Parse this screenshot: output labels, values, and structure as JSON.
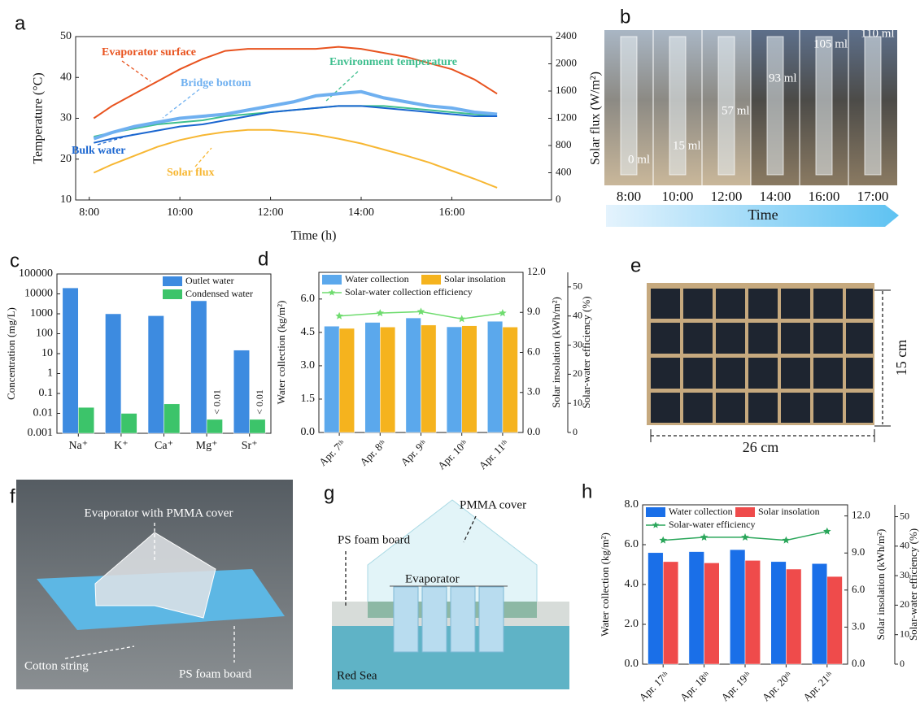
{
  "chart_data": [
    {
      "panel": "a",
      "type": "line",
      "xlabel": "Time (h)",
      "ylabel": "Temperature (°C)",
      "y2label": "Solar flux (W/m²)",
      "x": [
        8.1,
        8.5,
        9,
        9.5,
        10,
        10.5,
        11,
        11.5,
        12,
        12.5,
        13,
        13.5,
        14,
        14.5,
        15,
        15.5,
        16,
        16.5,
        17
      ],
      "xlim": [
        7.7,
        18.2
      ],
      "xticks": [
        {
          "value": 8,
          "label": "8:00"
        },
        {
          "value": 10,
          "label": "10:00"
        },
        {
          "value": 12,
          "label": "12:00"
        },
        {
          "value": 14,
          "label": "14:00"
        },
        {
          "value": 16,
          "label": "16:00"
        }
      ],
      "ylim": [
        10,
        50
      ],
      "yticks": [
        10,
        20,
        30,
        40,
        50
      ],
      "y2lim": [
        0,
        2400
      ],
      "y2ticks": [
        0,
        400,
        800,
        1200,
        1600,
        2000,
        2400
      ],
      "series": [
        {
          "name": "Evaporator surface",
          "color": "#e8531f",
          "values": [
            30,
            33,
            36,
            39,
            42,
            44.5,
            46.5,
            47,
            47,
            47,
            47,
            47.5,
            47,
            46,
            45,
            43.5,
            42,
            39.5,
            36
          ]
        },
        {
          "name": "Environment temperature",
          "color": "#3fbf8f",
          "values": [
            25.5,
            26.5,
            27.5,
            28.5,
            29,
            29.5,
            30.5,
            31,
            31.5,
            32,
            32.5,
            33,
            33,
            33,
            32.5,
            32,
            31.5,
            31,
            30.5
          ]
        },
        {
          "name": "Bridge bottom",
          "color": "#6fb0f0",
          "values": [
            25,
            26.5,
            28,
            29,
            30,
            30.5,
            31,
            32,
            33,
            34,
            35.5,
            36,
            36.5,
            35,
            34,
            33,
            32.5,
            31.5,
            31
          ]
        },
        {
          "name": "Bulk water",
          "color": "#1a66d0",
          "values": [
            24,
            25,
            26,
            27,
            28,
            28.5,
            29.5,
            30.5,
            31.5,
            32,
            32.5,
            33,
            33,
            32.5,
            32,
            31.5,
            31,
            30.5,
            30.5
          ]
        },
        {
          "name": "Solar flux",
          "color": "#f7b733",
          "axis": "y2",
          "values": [
            400,
            520,
            650,
            780,
            880,
            950,
            1000,
            1030,
            1030,
            1000,
            960,
            900,
            830,
            740,
            650,
            550,
            430,
            310,
            180
          ]
        }
      ]
    },
    {
      "panel": "c",
      "type": "bar",
      "ylabel": "Concentration (mg/L)",
      "log": true,
      "categories": [
        "Na⁺",
        "K⁺",
        "Ca⁺",
        "Mg⁺",
        "Sr⁺"
      ],
      "ylim": [
        0.001,
        100000
      ],
      "yticks": [
        0.001,
        0.01,
        0.1,
        1,
        10,
        100,
        1000,
        10000,
        100000
      ],
      "legend": "upper right",
      "series": [
        {
          "name": "Outlet water",
          "color": "#3d8be0",
          "values": [
            20000,
            1000,
            800,
            4500,
            15
          ]
        },
        {
          "name": "Condensed water",
          "color": "#3cc46a",
          "values": [
            0.02,
            0.01,
            0.03,
            0.005,
            0.005
          ],
          "value_labels": [
            null,
            null,
            null,
            "< 0.01",
            "< 0.01"
          ]
        }
      ]
    },
    {
      "panel": "d",
      "type": "bar",
      "ylabel": "Water collection (kg/m²)",
      "y2label": "Solar insolation (kWh/m²)",
      "y3label": "Solar-water efficiency (%)",
      "categories": [
        "Apr. 7ᵗʰ",
        "Apr. 8ᵗʰ",
        "Apr. 9ᵗʰ",
        "Apr. 10ᵗʰ",
        "Apr. 11ᵗʰ"
      ],
      "ylim": [
        0,
        7.2
      ],
      "yticks": [
        {
          "value": 0,
          "label": "0.0"
        },
        1.5,
        {
          "value": 3,
          "label": "3.0"
        },
        4.5,
        {
          "value": 6,
          "label": "6.0"
        }
      ],
      "y2lim": [
        0,
        12
      ],
      "y2ticks": [
        {
          "value": 0,
          "label": "0.0"
        },
        {
          "value": 3,
          "label": "3.0"
        },
        {
          "value": 6,
          "label": "6.0"
        },
        {
          "value": 9,
          "label": "9.0"
        },
        {
          "value": 12,
          "label": "12.0"
        }
      ],
      "y3lim": [
        0,
        55
      ],
      "y3ticks": [
        0,
        10,
        20,
        30,
        40,
        50
      ],
      "legend": "upper left",
      "series": [
        {
          "name": "Water collection",
          "color": "#5ba8ec",
          "values": [
            4.78,
            4.95,
            5.15,
            4.75,
            5.0
          ]
        },
        {
          "name": "Solar insolation",
          "color": "#f5b31e",
          "axis": "y2",
          "values": [
            7.8,
            7.9,
            8.05,
            8.0,
            7.9
          ]
        },
        {
          "name": "Solar-water collection efficiency",
          "color": "#6fdc6f",
          "axis": "y3",
          "type": "line",
          "values": [
            40,
            41,
            41.5,
            39,
            41
          ]
        }
      ]
    },
    {
      "panel": "h",
      "type": "bar",
      "ylabel": "Water collection (kg/m²)",
      "y2label": "Solar insolation (kWh/m²)",
      "y3label": "Solar-water efficiency (%)",
      "categories": [
        "Apr. 17ᵗʰ",
        "Apr. 18ᵗʰ",
        "Apr. 19ᵗʰ",
        "Apr. 20ᵗʰ",
        "Apr. 21ᵗʰ"
      ],
      "ylim": [
        0,
        8
      ],
      "yticks": [
        {
          "value": 0,
          "label": "0.0"
        },
        {
          "value": 2,
          "label": "2.0"
        },
        {
          "value": 4,
          "label": "4.0"
        },
        {
          "value": 6,
          "label": "6.0"
        },
        {
          "value": 8,
          "label": "8.0"
        }
      ],
      "y2lim": [
        0,
        12.9
      ],
      "y2ticks": [
        {
          "value": 0,
          "label": "0.0"
        },
        {
          "value": 3,
          "label": "3.0"
        },
        {
          "value": 6,
          "label": "6.0"
        },
        {
          "value": 9,
          "label": "9.0"
        },
        {
          "value": 12,
          "label": "12.0"
        }
      ],
      "y3lim": [
        0,
        54
      ],
      "y3ticks": [
        0,
        10,
        20,
        30,
        40,
        50
      ],
      "legend": "upper left",
      "series": [
        {
          "name": "Water collection",
          "color": "#1a6fe8",
          "values": [
            5.6,
            5.65,
            5.75,
            5.15,
            5.05
          ]
        },
        {
          "name": "Solar insolation",
          "color": "#ef4b4b",
          "axis": "y2",
          "values": [
            8.3,
            8.2,
            8.4,
            7.7,
            7.1
          ]
        },
        {
          "name": "Solar-water efficiency",
          "color": "#2aa65a",
          "axis": "y3",
          "type": "line",
          "values": [
            42,
            43,
            43,
            42,
            45
          ]
        }
      ]
    }
  ],
  "photos": {
    "b": {
      "panel": "b",
      "volumes": [
        "0 ml",
        "15 ml",
        "57 ml",
        "93 ml",
        "105 ml",
        "110 ml"
      ],
      "times": [
        "8:00",
        "10:00",
        "12:00",
        "14:00",
        "16:00",
        "17:00"
      ],
      "axis_label": "Time"
    },
    "e": {
      "panel": "e",
      "height": "15 cm",
      "width": "26 cm"
    },
    "f": {
      "panel": "f",
      "labels": [
        "Evaporator with PMMA cover",
        "Cotton string",
        "PS foam board"
      ]
    },
    "g": {
      "panel": "g",
      "labels": [
        "PMMA cover",
        "PS foam board",
        "Evaporator",
        "Red Sea"
      ]
    }
  }
}
